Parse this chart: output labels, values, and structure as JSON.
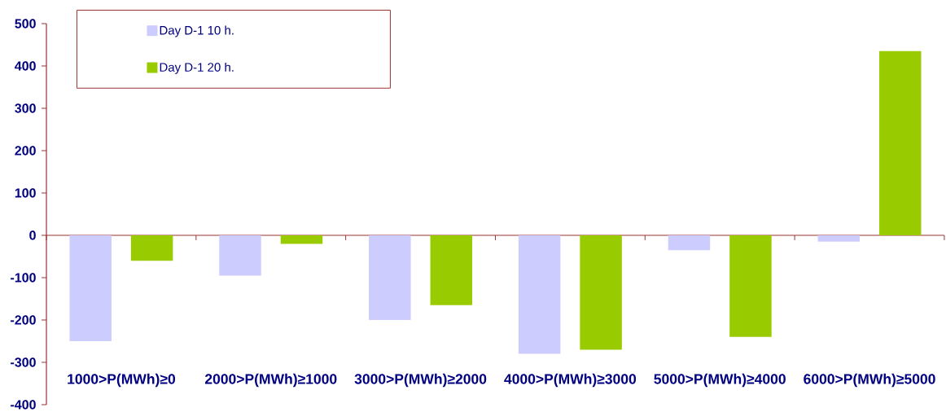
{
  "chart_data": {
    "type": "bar",
    "categories": [
      "1000>P(MWh)≥0",
      "2000>P(MWh)≥1000",
      "3000>P(MWh)≥2000",
      "4000>P(MWh)≥3000",
      "5000>P(MWh)≥4000",
      "6000>P(MWh)≥5000"
    ],
    "series": [
      {
        "name": "Day D-1 10 h.",
        "color": "#ccccff",
        "values": [
          -250,
          -95,
          -200,
          -280,
          -35,
          -15
        ]
      },
      {
        "name": "Day D-1 20 h.",
        "color": "#99cc00",
        "values": [
          -60,
          -20,
          -165,
          -270,
          -240,
          435
        ]
      }
    ],
    "ylim": [
      -400,
      500
    ],
    "yticks": [
      -400,
      -300,
      -200,
      -100,
      0,
      100,
      200,
      300,
      400,
      500
    ],
    "legend": "top left",
    "ref_lines": [
      {
        "axis": "y",
        "value": 0,
        "color": "#993333"
      }
    ]
  }
}
